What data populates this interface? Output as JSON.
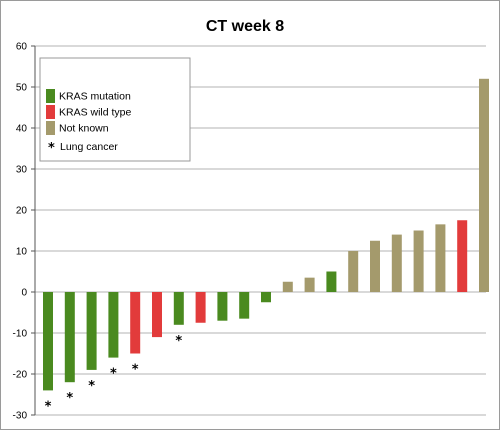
{
  "chart_data": {
    "type": "bar",
    "title": "CT week 8",
    "xlabel": "",
    "ylabel": "",
    "ylim": [
      -30,
      60
    ],
    "yticks": [
      -30,
      -20,
      -10,
      0,
      10,
      20,
      30,
      40,
      50,
      60
    ],
    "grid": true,
    "legend_position": "top-left",
    "colors": {
      "KRAS mutation": "#4a8a1f",
      "KRAS wild type": "#e23b3b",
      "Not known": "#a49a6c"
    },
    "legend": [
      {
        "label": "KRAS mutation",
        "color": "#4a8a1f"
      },
      {
        "label": "KRAS wild type",
        "color": "#e23b3b"
      },
      {
        "label": "Not known",
        "color": "#a49a6c"
      }
    ],
    "marker_legend": {
      "symbol": "*",
      "label": "Lung cancer"
    },
    "bars": [
      {
        "value": -24,
        "group": "KRAS mutation",
        "lung_cancer": true
      },
      {
        "value": -22,
        "group": "KRAS mutation",
        "lung_cancer": true
      },
      {
        "value": -19,
        "group": "KRAS mutation",
        "lung_cancer": true
      },
      {
        "value": -16,
        "group": "KRAS mutation",
        "lung_cancer": true
      },
      {
        "value": -15,
        "group": "KRAS wild type",
        "lung_cancer": true
      },
      {
        "value": -11,
        "group": "KRAS wild type",
        "lung_cancer": false
      },
      {
        "value": -8,
        "group": "KRAS mutation",
        "lung_cancer": true
      },
      {
        "value": -7.5,
        "group": "KRAS wild type",
        "lung_cancer": false
      },
      {
        "value": -7,
        "group": "KRAS mutation",
        "lung_cancer": false
      },
      {
        "value": -6.5,
        "group": "KRAS mutation",
        "lung_cancer": false
      },
      {
        "value": -2.5,
        "group": "KRAS mutation",
        "lung_cancer": false
      },
      {
        "value": 2.5,
        "group": "Not known",
        "lung_cancer": false
      },
      {
        "value": 3.5,
        "group": "Not known",
        "lung_cancer": false
      },
      {
        "value": 5,
        "group": "KRAS mutation",
        "lung_cancer": false
      },
      {
        "value": 10,
        "group": "Not known",
        "lung_cancer": false
      },
      {
        "value": 12.5,
        "group": "Not known",
        "lung_cancer": false
      },
      {
        "value": 14,
        "group": "Not known",
        "lung_cancer": false
      },
      {
        "value": 15,
        "group": "Not known",
        "lung_cancer": false
      },
      {
        "value": 16.5,
        "group": "Not known",
        "lung_cancer": false
      },
      {
        "value": 17.5,
        "group": "KRAS wild type",
        "lung_cancer": false
      },
      {
        "value": 52,
        "group": "Not known",
        "lung_cancer": false
      }
    ]
  }
}
